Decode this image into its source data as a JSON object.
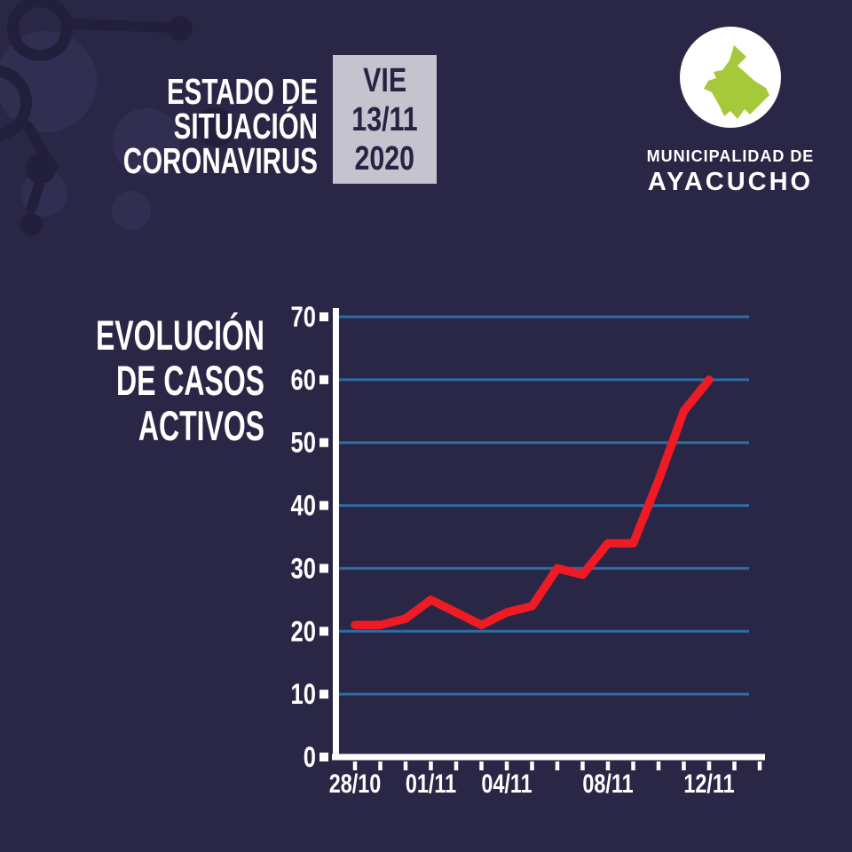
{
  "page": {
    "background_color": "#2a2746",
    "accent_red": "#ee1b24",
    "gridline_blue": "#2d6da6",
    "date_box_gray": "#c5c4ce",
    "logo_green": "#a6c83b"
  },
  "header": {
    "title_line1": "ESTADO DE SITUACIÓN",
    "title_line2": "CORONAVIRUS",
    "date_badge": {
      "day": "VIE",
      "date": "13/11",
      "year": "2020"
    },
    "logo": {
      "org_line1": "MUNICIPALIDAD DE",
      "org_line2": "AYACUCHO"
    }
  },
  "chart": {
    "title_line1": "EVOLUCIÓN",
    "title_line2": "DE CASOS",
    "title_line3": "ACTIVOS"
  },
  "chart_data": {
    "type": "line",
    "title": "EVOLUCIÓN DE CASOS ACTIVOS",
    "x": [
      "28/10",
      "29/10",
      "30/10",
      "01/11",
      "02/11",
      "03/11",
      "04/11",
      "05/11",
      "06/11",
      "07/11",
      "08/11",
      "09/11",
      "10/11",
      "11/11",
      "12/11"
    ],
    "values": [
      21,
      21,
      22,
      25,
      23,
      21,
      23,
      24,
      30,
      29,
      34,
      34,
      44,
      55,
      60
    ],
    "x_axis_tick_total": 17,
    "x_tick_labels_shown": [
      {
        "tick": 0,
        "label": "28/10"
      },
      {
        "tick": 3,
        "label": "01/11"
      },
      {
        "tick": 6,
        "label": "04/11"
      },
      {
        "tick": 10,
        "label": "08/11"
      },
      {
        "tick": 14,
        "label": "12/11"
      }
    ],
    "ylim": [
      0,
      70
    ],
    "y_ticks": [
      0,
      10,
      20,
      30,
      40,
      50,
      60,
      70
    ],
    "grid": "horizontal-only",
    "legend": "none",
    "colors": {
      "line": "#ee1b24",
      "gridline": "#2d6da6",
      "axis": "#ffffff",
      "labels": "#ffffff"
    }
  }
}
